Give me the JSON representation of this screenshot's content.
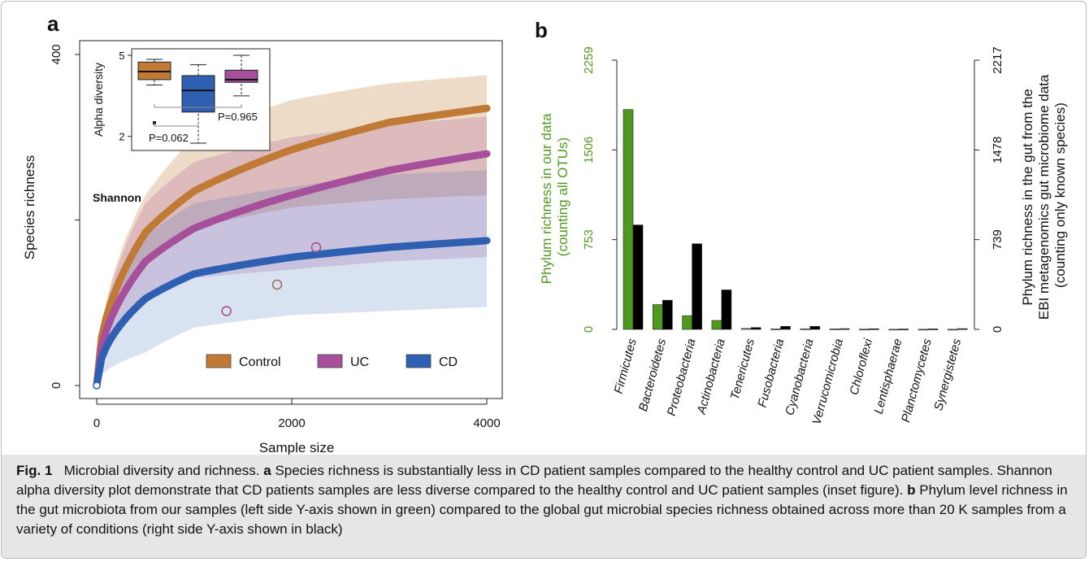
{
  "panel_a": {
    "letter": "a",
    "inset_label": "Shannon"
  },
  "panel_b": {
    "letter": "b"
  },
  "caption": {
    "fig_label": "Fig. 1",
    "title": "Microbial diversity and richness.",
    "part_a_letter": "a",
    "part_a_text": "Species richness is substantially less in CD patient samples compared to the healthy control and UC patient samples. Shannon alpha diversity plot demonstrate that CD patients samples are less diverse compared to the healthy control and UC patient samples (inset figure).",
    "part_b_letter": "b",
    "part_b_text": "Phylum level richness in the gut microbiota from our samples (left side Y-axis shown in green) compared to the global gut microbial species richness obtained across more than 20 K samples from a variety of conditions (right side Y-axis shown in black)"
  },
  "chart_data": [
    {
      "type": "line",
      "xlabel": "Sample size",
      "ylabel": "Species richness",
      "xlim": [
        0,
        4000
      ],
      "ylim": [
        0,
        400
      ],
      "x_ticks": [
        "0",
        "2000",
        "4000"
      ],
      "y_ticks": [
        "0",
        "400"
      ],
      "legend_position": "bottom-right",
      "series": [
        {
          "name": "Control",
          "color": "#c07a35",
          "x": [
            0,
            500,
            1000,
            2000,
            3000,
            4000
          ],
          "y": [
            0,
            185,
            235,
            285,
            318,
            335
          ],
          "band_y_low": [
            0,
            150,
            190,
            215,
            225,
            230
          ],
          "band_y_high": [
            0,
            230,
            300,
            345,
            365,
            375
          ]
        },
        {
          "name": "UC",
          "color": "#a64f9a",
          "x": [
            0,
            500,
            1000,
            2000,
            3000,
            4000
          ],
          "y": [
            0,
            150,
            190,
            230,
            260,
            280
          ],
          "band_y_low": [
            0,
            100,
            130,
            140,
            150,
            155
          ],
          "band_y_high": [
            0,
            220,
            270,
            300,
            315,
            325
          ]
        },
        {
          "name": "CD",
          "color": "#2f5fb0",
          "x": [
            0,
            500,
            1000,
            2000,
            3000,
            4000
          ],
          "y": [
            0,
            105,
            135,
            155,
            167,
            175
          ],
          "band_y_low": [
            0,
            40,
            70,
            85,
            90,
            95
          ],
          "band_y_high": [
            0,
            180,
            220,
            240,
            255,
            260
          ]
        }
      ],
      "points": [
        {
          "x": 1330,
          "y": 90,
          "color": "#a64f9a"
        },
        {
          "x": 1850,
          "y": 122,
          "color": "#a0705a"
        },
        {
          "x": 2250,
          "y": 167,
          "color": "#a64f9a"
        }
      ],
      "inset": {
        "type": "box",
        "ylabel": "Alpha diversity",
        "y_ticks": [
          "2",
          "5"
        ],
        "boxes": [
          {
            "group": "Control",
            "color": "#c07a35",
            "whisker_low": 3.9,
            "q1": 4.1,
            "median": 4.4,
            "q3": 4.75,
            "whisker_high": 4.85,
            "outliers": [
              2.5
            ]
          },
          {
            "group": "CD",
            "color": "#2f5fb0",
            "whisker_low": 1.75,
            "q1": 2.9,
            "median": 3.7,
            "q3": 4.25,
            "whisker_high": 4.65,
            "outliers": []
          },
          {
            "group": "UC",
            "color": "#a64f9a",
            "whisker_low": 3.5,
            "q1": 4.0,
            "median": 4.1,
            "q3": 4.45,
            "whisker_high": 5.0,
            "outliers": []
          }
        ],
        "comparisons": [
          {
            "label": "P=0.062"
          },
          {
            "label": "P=0.965"
          }
        ]
      }
    },
    {
      "type": "bar",
      "ylabel_left": "Phylum richness in our data (counting all OTUs)",
      "ylabel_right": "Phylum richness in the gut from the EBI metagenomics gut microbiome data (counting only known species)",
      "ylim_left": [
        0,
        2259
      ],
      "ylim_right": [
        0,
        2217
      ],
      "left_ticks": [
        "0",
        "753",
        "1506",
        "2259"
      ],
      "right_ticks": [
        "0",
        "739",
        "1478",
        "2217"
      ],
      "categories": [
        "Firmicutes",
        "Bacteroidetes",
        "Proteobacteria",
        "Actinobacteria",
        "Tenericutes",
        "Fusobacteria",
        "Cyanobacteria",
        "Verrucomicrobia",
        "Chloroflexi",
        "Lentisphaerae",
        "Planctomycetes",
        "Synergistetes"
      ],
      "series": [
        {
          "axis": "left",
          "color": "#4e9a1e",
          "values": [
            1845,
            208,
            115,
            75,
            8,
            4,
            5,
            4,
            2,
            1,
            1,
            1
          ]
        },
        {
          "axis": "right",
          "color": "#000000",
          "values": [
            860,
            240,
            705,
            325,
            15,
            25,
            25,
            6,
            5,
            3,
            4,
            6
          ]
        }
      ]
    }
  ]
}
